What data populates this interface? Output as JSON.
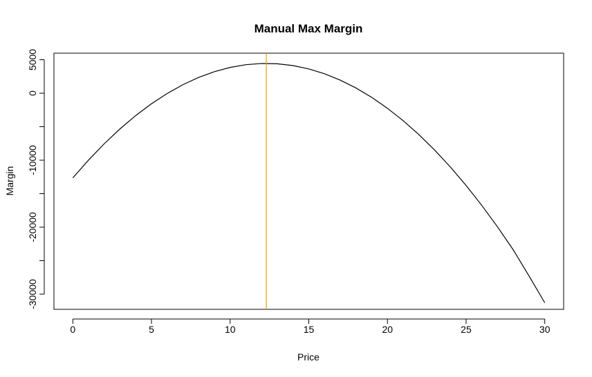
{
  "chart_data": {
    "type": "line",
    "title": "Manual Max Margin",
    "x_label": "Price",
    "y_label": "Margin",
    "x": [
      0,
      1,
      2,
      3,
      4,
      5,
      6,
      7,
      8,
      9,
      10,
      11,
      12,
      13,
      14,
      15,
      16,
      17,
      18,
      19,
      20,
      21,
      22,
      23,
      24,
      25,
      26,
      27,
      28,
      29,
      30
    ],
    "series": [
      {
        "color": "#000000",
        "values": [
          -12646,
          -9979,
          -7538,
          -5323,
          -3335,
          -1572,
          -35,
          1276,
          2361,
          3219,
          3852,
          4259,
          4440,
          4395,
          4123,
          3626,
          2903,
          1954,
          779,
          -623,
          -2250,
          -4103,
          -6182,
          -8487,
          -11019,
          -13776,
          -16759,
          -19968,
          -23403,
          -27291,
          -31291
        ]
      }
    ],
    "xlim": [
      -1.2,
      31.2
    ],
    "ylim": [
      -32270,
      5980
    ],
    "xticks": [
      0,
      5,
      10,
      15,
      20,
      25,
      30
    ],
    "yticks": [
      5000,
      0,
      {
        "value": -5000,
        "label": null
      },
      -10000,
      {
        "value": -15000,
        "label": null
      },
      -20000,
      {
        "value": -25000,
        "label": null
      },
      -30000
    ],
    "vline": {
      "x": 12.3,
      "color": "#e69f00"
    }
  }
}
